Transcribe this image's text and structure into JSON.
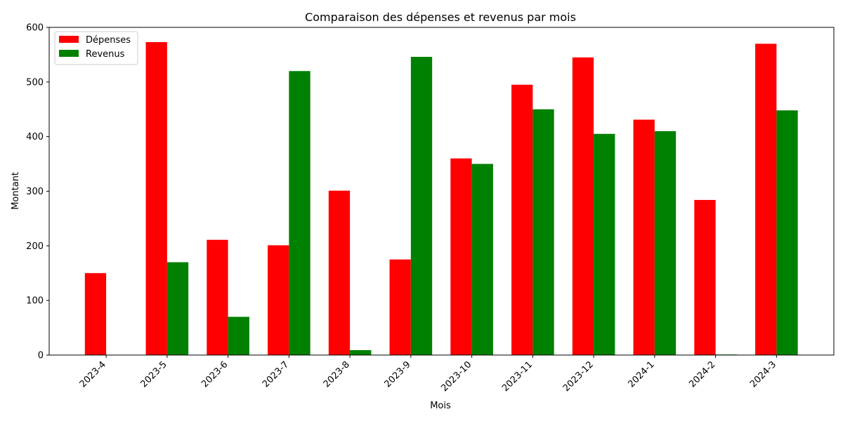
{
  "chart_data": {
    "type": "bar",
    "title": "Comparaison des dépenses et revenus par mois",
    "xlabel": "Mois",
    "ylabel": "Montant",
    "ylim": [
      0,
      600
    ],
    "yticks": [
      0,
      100,
      200,
      300,
      400,
      500,
      600
    ],
    "grid": false,
    "legend_position": "top-left",
    "categories": [
      "2023-4",
      "2023-5",
      "2023-6",
      "2023-7",
      "2023-8",
      "2023-9",
      "2023-10",
      "2023-11",
      "2023-12",
      "2024-1",
      "2024-2",
      "2024-3"
    ],
    "series": [
      {
        "name": "Dépenses",
        "color": "#ff0000",
        "values": [
          150,
          573,
          211,
          201,
          301,
          175,
          360,
          495,
          545,
          431,
          284,
          570
        ]
      },
      {
        "name": "Revenus",
        "color": "#008000",
        "values": [
          0,
          170,
          70,
          520,
          9,
          546,
          350,
          450,
          405,
          410,
          1,
          448
        ]
      }
    ]
  }
}
